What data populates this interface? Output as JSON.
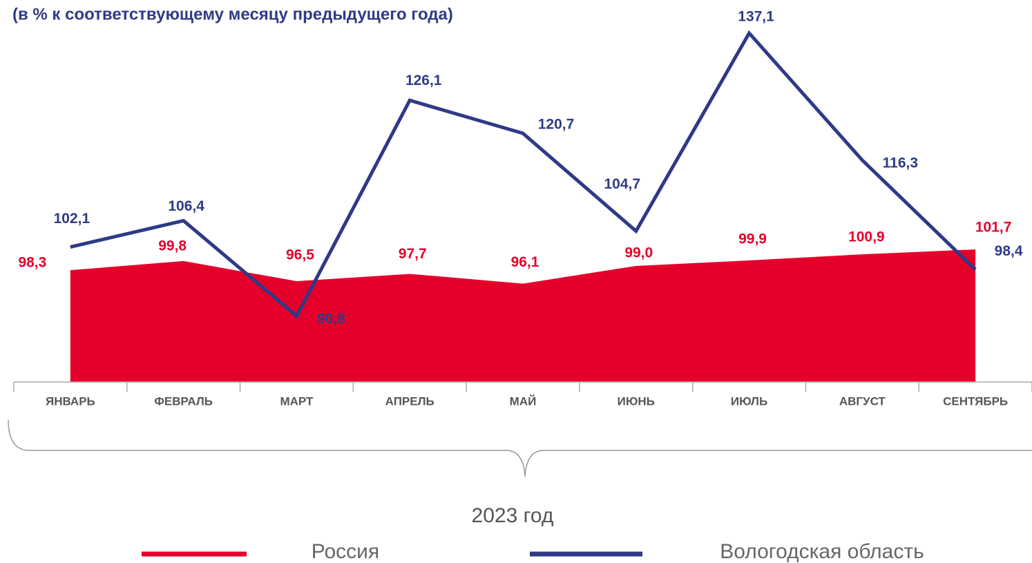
{
  "chart_data": {
    "type": "area_line",
    "title": "(в % к соответствующему месяцу предыдущего года)",
    "xlabel": "2023 год",
    "categories": [
      "ЯНВАРЬ",
      "ФЕВРАЛЬ",
      "МАРТ",
      "АПРЕЛЬ",
      "МАЙ",
      "ИЮНЬ",
      "ИЮЛЬ",
      "АВГУСТ",
      "СЕНТЯБРЬ"
    ],
    "ylim": [
      80,
      138
    ],
    "series": [
      {
        "name": "Россия",
        "color": "#e4002b",
        "kind": "area",
        "values": [
          98.3,
          99.8,
          96.5,
          97.7,
          96.1,
          99.0,
          99.9,
          100.9,
          101.7
        ],
        "value_labels": [
          "98,3",
          "99,8",
          "96,5",
          "97,7",
          "96,1",
          "99,0",
          "99,9",
          "100,9",
          "101,7"
        ]
      },
      {
        "name": "Вологодская область",
        "color": "#2e3a87",
        "kind": "line",
        "values": [
          102.1,
          106.4,
          90.8,
          126.1,
          120.7,
          104.7,
          137.1,
          116.3,
          98.4
        ],
        "value_labels": [
          "102,1",
          "106,4",
          "90,8",
          "126,1",
          "120,7",
          "104,7",
          "137,1",
          "116,3",
          "98,4"
        ]
      }
    ]
  }
}
